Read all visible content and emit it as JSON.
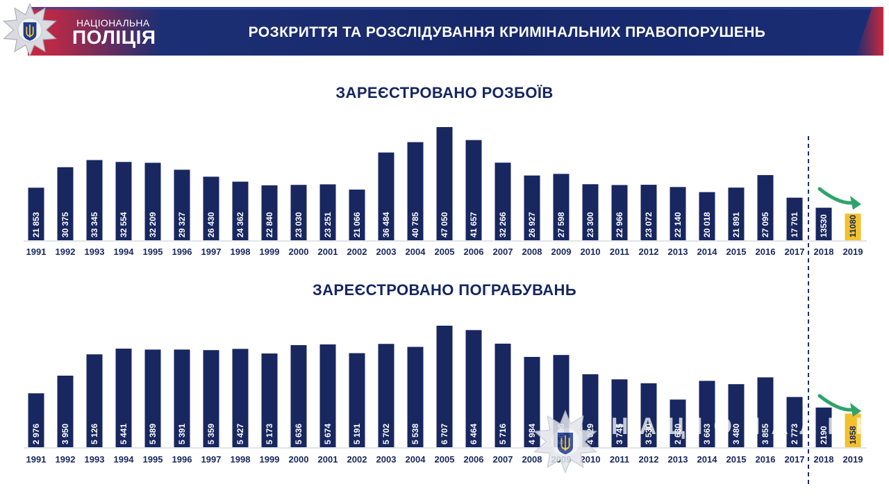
{
  "header": {
    "brand_small": "НАЦІОНАЛЬНА",
    "brand_big": "ПОЛІЦІЯ",
    "title": "РОЗКРИТТЯ ТА РОЗСЛІДУВАННЯ КРИМІНАЛЬНИХ ПРАВОПОРУШЕНЬ"
  },
  "watermark": {
    "text": "НАЦІОНАЛЬНА"
  },
  "colors": {
    "bar": "#18275f",
    "highlight": "#f2c12e",
    "arrow": "#2fa36b",
    "brand_red": "#c8283c"
  },
  "icons": {
    "logo": "police-star-trident-icon",
    "arrow": "down-right-arrow-icon"
  },
  "chart_data": [
    {
      "type": "bar",
      "title": "ЗАРЕЄСТРОВАНО РОЗБОЇВ",
      "categories": [
        "1991",
        "1992",
        "1993",
        "1994",
        "1995",
        "1996",
        "1997",
        "1998",
        "1999",
        "2000",
        "2001",
        "2002",
        "2003",
        "2004",
        "2005",
        "2006",
        "2007",
        "2008",
        "2009",
        "2010",
        "2011",
        "2012",
        "2013",
        "2014",
        "2015",
        "2016",
        "2017",
        "2018",
        "2019"
      ],
      "values": [
        21853,
        30375,
        33345,
        32554,
        32209,
        29327,
        26430,
        24362,
        22840,
        23030,
        23251,
        21066,
        36484,
        40785,
        47050,
        41657,
        32266,
        26927,
        27598,
        23300,
        22966,
        23072,
        22140,
        20018,
        21891,
        27095,
        17701,
        13530,
        11080
      ],
      "labels": [
        "21 853",
        "30 375",
        "33 345",
        "32 554",
        "32 209",
        "29 327",
        "26 430",
        "24 362",
        "22 840",
        "23 030",
        "23 251",
        "21 066",
        "36 484",
        "40 785",
        "47 050",
        "41 657",
        "32 266",
        "26 927",
        "27 598",
        "23 300",
        "22 966",
        "23 072",
        "22 140",
        "20 018",
        "21 891",
        "27 095",
        "17 701",
        "13530",
        "11080"
      ],
      "highlight_last": true,
      "divider_after": "2017",
      "ylim": [
        0,
        47050
      ]
    },
    {
      "type": "bar",
      "title": "ЗАРЕЄСТРОВАНО  ПОГРАБУВАНЬ",
      "categories": [
        "1991",
        "1992",
        "1993",
        "1994",
        "1995",
        "1996",
        "1997",
        "1998",
        "1999",
        "2000",
        "2001",
        "2002",
        "2003",
        "2004",
        "2005",
        "2006",
        "2007",
        "2008",
        "2009",
        "2010",
        "2011",
        "2012",
        "2013",
        "2014",
        "2015",
        "2016",
        "2017",
        "2018",
        "2019"
      ],
      "values": [
        2976,
        3950,
        5126,
        5441,
        5389,
        5391,
        5359,
        5427,
        5173,
        5636,
        5674,
        5191,
        5702,
        5538,
        6707,
        6464,
        5716,
        4984,
        5090,
        4029,
        3745,
        3530,
        2630,
        3663,
        3480,
        3855,
        2773,
        2190,
        1858
      ],
      "labels": [
        "2 976",
        "3 950",
        "5 126",
        "5 441",
        "5 389",
        "5 391",
        "5 359",
        "5 427",
        "5 173",
        "5 636",
        "5 674",
        "5 191",
        "5 702",
        "5 538",
        "6 707",
        "6 464",
        "5 716",
        "4 984",
        "5 090",
        "4 029",
        "3 745",
        "3 530",
        "2 630",
        "3 663",
        "3 480",
        "3 855",
        "2 773",
        "2190",
        "1858"
      ],
      "highlight_last": true,
      "divider_after": "2017",
      "ylim": [
        0,
        6707
      ]
    }
  ]
}
